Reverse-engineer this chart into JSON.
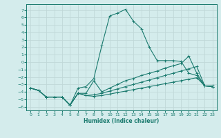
{
  "xlabel": "Humidex (Indice chaleur)",
  "background_color": "#d4ecec",
  "grid_color": "#c0d8d8",
  "line_color": "#1a7a6e",
  "xlim": [
    -0.5,
    23.5
  ],
  "ylim": [
    -6.5,
    7.8
  ],
  "xticks": [
    0,
    1,
    2,
    3,
    4,
    5,
    6,
    7,
    8,
    9,
    10,
    11,
    12,
    13,
    14,
    15,
    16,
    17,
    18,
    19,
    20,
    21,
    22,
    23
  ],
  "yticks": [
    -6,
    -5,
    -4,
    -3,
    -2,
    -1,
    0,
    1,
    2,
    3,
    4,
    5,
    6,
    7
  ],
  "lines": [
    {
      "x": [
        0,
        1,
        2,
        3,
        4,
        5,
        6,
        7,
        8,
        9,
        10,
        11,
        12,
        13,
        14,
        15,
        16,
        17,
        18,
        19,
        20,
        21,
        22,
        23
      ],
      "y": [
        -3.5,
        -3.8,
        -4.7,
        -4.7,
        -4.7,
        -5.8,
        -3.5,
        -3.3,
        -2.2,
        2.2,
        6.2,
        6.6,
        7.1,
        5.5,
        4.5,
        2.0,
        0.2,
        0.2,
        0.2,
        0.1,
        -1.5,
        -1.8,
        -3.2,
        -3.2
      ]
    },
    {
      "x": [
        0,
        1,
        2,
        3,
        4,
        5,
        6,
        7,
        8,
        9,
        10,
        11,
        12,
        13,
        14,
        15,
        16,
        17,
        18,
        19,
        20,
        21,
        22,
        23
      ],
      "y": [
        -3.5,
        -3.8,
        -4.7,
        -4.7,
        -4.7,
        -5.8,
        -4.2,
        -4.2,
        -2.5,
        -4.0,
        -3.5,
        -3.0,
        -2.5,
        -2.2,
        -1.8,
        -1.5,
        -1.2,
        -0.8,
        -0.5,
        -0.2,
        0.8,
        -1.5,
        -3.2,
        -3.3
      ]
    },
    {
      "x": [
        0,
        1,
        2,
        3,
        4,
        5,
        6,
        7,
        8,
        9,
        10,
        11,
        12,
        13,
        14,
        15,
        16,
        17,
        18,
        19,
        20,
        21,
        22,
        23
      ],
      "y": [
        -3.5,
        -3.8,
        -4.7,
        -4.7,
        -4.7,
        -5.8,
        -4.2,
        -4.5,
        -4.4,
        -4.2,
        -3.9,
        -3.6,
        -3.3,
        -3.0,
        -2.7,
        -2.4,
        -2.1,
        -1.8,
        -1.5,
        -1.2,
        -0.9,
        -0.6,
        -3.2,
        -3.3
      ]
    },
    {
      "x": [
        0,
        1,
        2,
        3,
        4,
        5,
        6,
        7,
        8,
        9,
        10,
        11,
        12,
        13,
        14,
        15,
        16,
        17,
        18,
        19,
        20,
        21,
        22,
        23
      ],
      "y": [
        -3.5,
        -3.8,
        -4.7,
        -4.7,
        -4.7,
        -5.8,
        -4.2,
        -4.5,
        -4.6,
        -4.5,
        -4.3,
        -4.1,
        -3.9,
        -3.7,
        -3.5,
        -3.3,
        -3.1,
        -2.9,
        -2.7,
        -2.5,
        -2.3,
        -2.1,
        -3.2,
        -3.3
      ]
    }
  ]
}
